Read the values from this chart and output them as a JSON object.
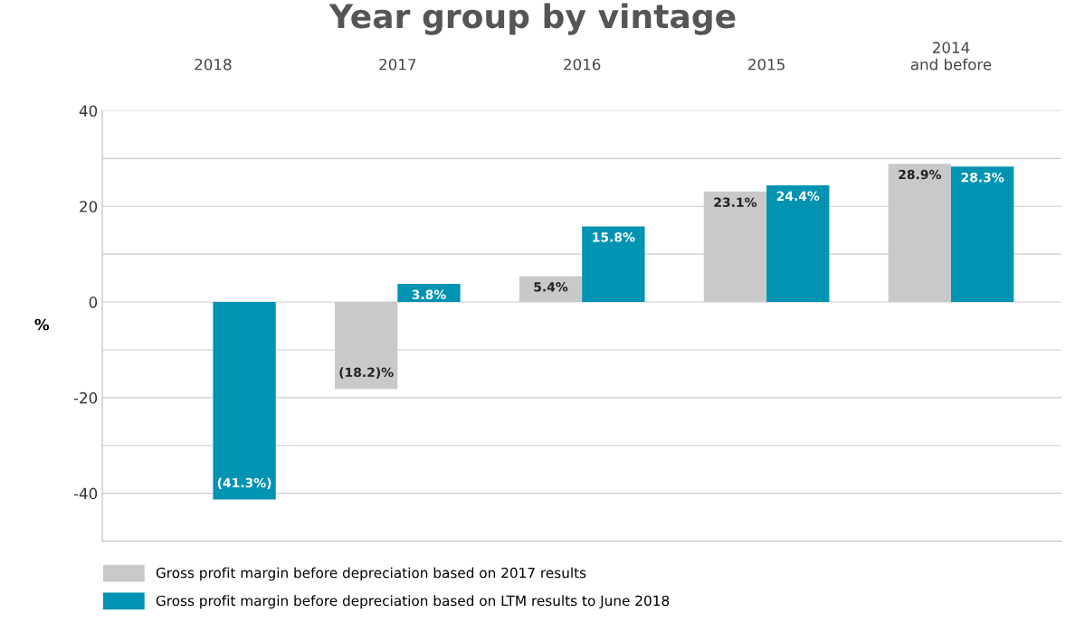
{
  "chart_data": {
    "type": "bar",
    "title": "Year group by vintage",
    "ylabel": "%",
    "categories": [
      "2018",
      "2017",
      "2016",
      "2015",
      "2014\nand before"
    ],
    "series": [
      {
        "name": "Gross profit margin before depreciation based on 2017 results",
        "color": "#c8c9cb",
        "values": [
          null,
          -18.2,
          5.4,
          23.1,
          28.9
        ],
        "value_labels": [
          null,
          "(18.2)%",
          "5.4%",
          "23.1%",
          "28.9%"
        ]
      },
      {
        "name": "Gross profit margin before depreciation based on LTM results to June 2018",
        "color": "#0093b2",
        "values": [
          -41.3,
          3.8,
          15.8,
          24.4,
          28.3
        ],
        "value_labels": [
          "(41.3%)",
          "3.8%",
          "15.8%",
          "24.4%",
          "28.3%"
        ]
      }
    ],
    "ylim": [
      -50,
      40
    ],
    "yticks": [
      {
        "value": -50,
        "label": null
      },
      -40,
      {
        "value": -30,
        "label": null
      },
      -20,
      {
        "value": -10,
        "label": null
      },
      0,
      {
        "value": 10,
        "label": null
      },
      20,
      {
        "value": 30,
        "label": null
      },
      40
    ],
    "grid": "y",
    "legend": "bottom"
  }
}
